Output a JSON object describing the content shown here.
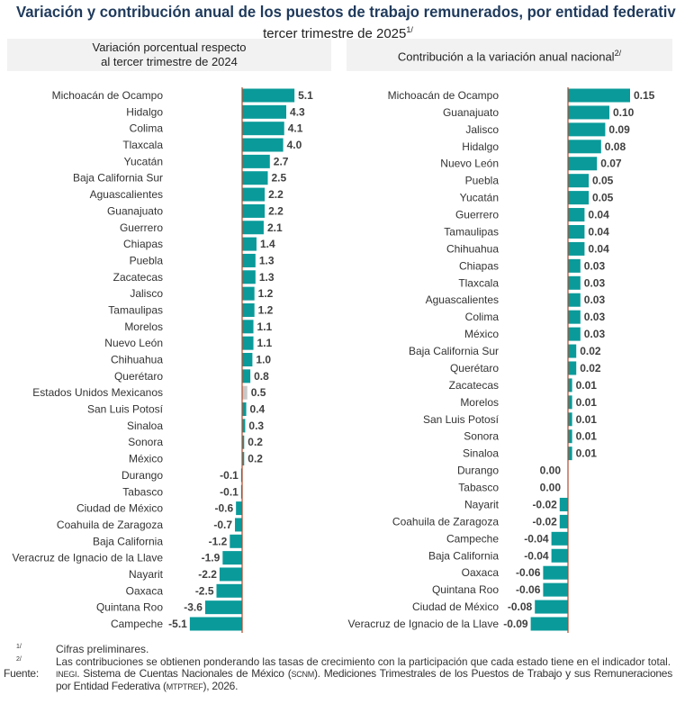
{
  "title": "Variación y contribución anual de los puestos de trabajo remunerados, por entidad federativa",
  "subtitle": "tercer trimestre de 2025",
  "subtitle_note": "1/",
  "colors": {
    "bar": "#0a9a9a",
    "national": "#c8c8c8",
    "axis": "#b5482a",
    "label": "#333333",
    "value": "#404040"
  },
  "chart_data": [
    {
      "type": "bar",
      "orientation": "horizontal",
      "title_line1": "Variación porcentual respecto",
      "title_line2": "al tercer trimestre de 2024",
      "categories": [
        "Michoacán de Ocampo",
        "Hidalgo",
        "Colima",
        "Tlaxcala",
        "Yucatán",
        "Baja California Sur",
        "Aguascalientes",
        "Guanajuato",
        "Guerrero",
        "Chiapas",
        "Puebla",
        "Zacatecas",
        "Jalisco",
        "Tamaulipas",
        "Morelos",
        "Nuevo León",
        "Chihuahua",
        "Querétaro",
        "Estados Unidos Mexicanos",
        "San Luis Potosí",
        "Sinaloa",
        "Sonora",
        "México",
        "Durango",
        "Tabasco",
        "Ciudad de México",
        "Coahuila de Zaragoza",
        "Baja California",
        "Veracruz de Ignacio de la Llave",
        "Nayarit",
        "Oaxaca",
        "Quintana Roo",
        "Campeche"
      ],
      "values": [
        5.1,
        4.3,
        4.1,
        4.0,
        2.7,
        2.5,
        2.2,
        2.2,
        2.1,
        1.4,
        1.3,
        1.3,
        1.2,
        1.2,
        1.1,
        1.1,
        1.0,
        0.8,
        0.5,
        0.4,
        0.3,
        0.2,
        0.2,
        -0.1,
        -0.1,
        -0.6,
        -0.7,
        -1.2,
        -1.9,
        -2.2,
        -2.5,
        -3.6,
        -5.1
      ],
      "labels": [
        "5.1",
        "4.3",
        "4.1",
        "4.0",
        "2.7",
        "2.5",
        "2.2",
        "2.2",
        "2.1",
        "1.4",
        "1.3",
        "1.3",
        "1.2",
        "1.2",
        "1.1",
        "1.1",
        "1.0",
        "0.8",
        "0.5",
        "0.4",
        "0.3",
        "0.2",
        "0.2",
        "-0.1",
        "-0.1",
        "-0.6",
        "-0.7",
        "-1.2",
        "-1.9",
        "-2.2",
        "-2.5",
        "-3.6",
        "-5.1"
      ],
      "highlight": "Estados Unidos Mexicanos"
    },
    {
      "type": "bar",
      "orientation": "horizontal",
      "title": "Contribución a la variación anual nacional",
      "title_note": "2/",
      "categories": [
        "Michoacán de Ocampo",
        "Guanajuato",
        "Jalisco",
        "Hidalgo",
        "Nuevo León",
        "Puebla",
        "Yucatán",
        "Guerrero",
        "Tamaulipas",
        "Chihuahua",
        "Chiapas",
        "Tlaxcala",
        "Aguascalientes",
        "Colima",
        "México",
        "Baja California Sur",
        "Querétaro",
        "Zacatecas",
        "Morelos",
        "San Luis Potosí",
        "Sonora",
        "Sinaloa",
        "Durango",
        "Tabasco",
        "Nayarit",
        "Coahuila de Zaragoza",
        "Campeche",
        "Baja California",
        "Oaxaca",
        "Quintana Roo",
        "Ciudad de México",
        "Veracruz de Ignacio de la Llave"
      ],
      "values": [
        0.15,
        0.1,
        0.09,
        0.08,
        0.07,
        0.05,
        0.05,
        0.04,
        0.04,
        0.04,
        0.03,
        0.03,
        0.03,
        0.03,
        0.03,
        0.02,
        0.02,
        0.01,
        0.01,
        0.01,
        0.01,
        0.01,
        0.0,
        0.0,
        -0.02,
        -0.02,
        -0.04,
        -0.04,
        -0.06,
        -0.06,
        -0.08,
        -0.09
      ],
      "labels": [
        "0.15",
        "0.10",
        "0.09",
        "0.08",
        "0.07",
        "0.05",
        "0.05",
        "0.04",
        "0.04",
        "0.04",
        "0.03",
        "0.03",
        "0.03",
        "0.03",
        "0.03",
        "0.02",
        "0.02",
        "0.01",
        "0.01",
        "0.01",
        "0.01",
        "0.01",
        "0.00",
        "0.00",
        "-0.02",
        "-0.02",
        "-0.04",
        "-0.04",
        "-0.06",
        "-0.06",
        "-0.08",
        "-0.09"
      ]
    }
  ],
  "notes": {
    "n1_mark": "1/",
    "n1": "Cifras preliminares.",
    "n2_mark": "2/",
    "n2": "Las contribuciones se obtienen ponderando las tasas de crecimiento con la participación que cada estado tiene en el indicador total.",
    "source_label": "Fuente:",
    "source_inegi": "INEGI",
    "source_a": ". Sistema de Cuentas Nacionales de México (",
    "source_scnm": "SCNM",
    "source_b": "). Mediciones Trimestrales de los Puestos de Trabajo y sus Remuneraciones por Entidad Federativa (",
    "source_mtptref": "MTPTREF",
    "source_c": "), 2026."
  }
}
